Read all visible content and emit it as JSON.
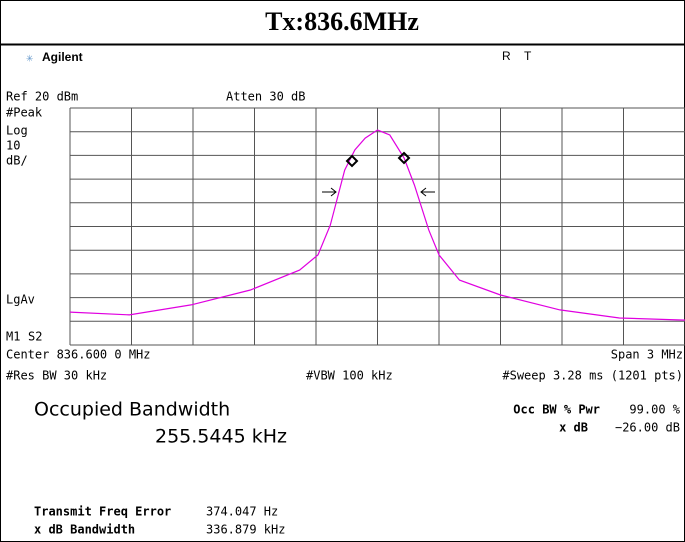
{
  "header": {
    "title": "Tx:836.6MHz"
  },
  "brand": "Agilent",
  "status": [
    "R",
    "T"
  ],
  "ref_level": "Ref 20 dBm",
  "attenuation": "Atten 30 dB",
  "left_labels": [
    "#Peak",
    "Log",
    "10",
    "dB/"
  ],
  "lgav": "LgAv",
  "marker_labels": [
    "M1",
    "S2"
  ],
  "center": "Center 836.600 0 MHz",
  "span": "Span 3 MHz",
  "res_bw": "#Res BW 30 kHz",
  "vbw": "#VBW 100 kHz",
  "sweep": "#Sweep 3.28 ms (1201 pts)",
  "measurement": {
    "name": "Occupied Bandwidth",
    "value": "255.5445 kHz"
  },
  "settings": [
    {
      "label": "Occ BW % Pwr",
      "value": "99.00 %"
    },
    {
      "label": "x dB",
      "value": "−26.00 dB"
    }
  ],
  "results": [
    {
      "label": "Transmit Freq Error",
      "value": "374.047 Hz"
    },
    {
      "label": "x dB Bandwidth",
      "value": "336.879 kHz"
    }
  ],
  "chart_data": {
    "type": "line",
    "color": "#e000e0",
    "xlim": [
      835.1,
      838.1
    ],
    "ylim": [
      -80,
      20
    ],
    "x": [
      835.1,
      835.39,
      835.69,
      835.98,
      836.22,
      836.31,
      836.37,
      836.44,
      836.49,
      836.54,
      836.6,
      836.66,
      836.73,
      836.78,
      836.85,
      836.9,
      837.0,
      837.2,
      837.49,
      837.78,
      838.1
    ],
    "values": [
      -66.1,
      -67.3,
      -63.1,
      -56.8,
      -48.4,
      -42.0,
      -29.4,
      -6.2,
      2.3,
      7.3,
      10.7,
      8.6,
      -1.1,
      -12.5,
      -31.5,
      -42.0,
      -52.6,
      -58.9,
      -65.2,
      -68.6,
      -69.5
    ]
  }
}
